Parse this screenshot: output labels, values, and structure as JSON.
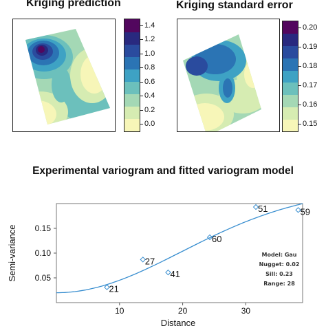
{
  "palette": [
    "#f7f6b8",
    "#d6ecb2",
    "#a4d8b5",
    "#6cc0bc",
    "#3ea2c4",
    "#2b74b4",
    "#2a4b9e",
    "#29297f",
    "#52075e"
  ],
  "prediction_map": {
    "title": "Kriging prediction",
    "colorbar_ticks": [
      "1.4",
      "1.2",
      "1.0",
      "0.8",
      "0.6",
      "0.4",
      "0.2",
      "0.0"
    ]
  },
  "stderr_map": {
    "title": "Kriging standard error",
    "colorbar_ticks": [
      "0.20",
      "0.19",
      "0.18",
      "0.17",
      "0.16",
      "0.15"
    ]
  },
  "chart_data": {
    "type": "scatter",
    "title": "Experimental variogram and fitted variogram model",
    "xlabel": "Distance",
    "ylabel": "Semi-variance",
    "xlim": [
      0,
      39
    ],
    "ylim": [
      0,
      0.2
    ],
    "x_ticks": [
      10,
      20,
      30
    ],
    "y_ticks": [
      "0.05",
      "0.10",
      "0.15"
    ],
    "points": [
      {
        "x": 8.0,
        "y": 0.031,
        "label": "21"
      },
      {
        "x": 13.7,
        "y": 0.087,
        "label": "27"
      },
      {
        "x": 17.7,
        "y": 0.061,
        "label": "41"
      },
      {
        "x": 24.3,
        "y": 0.132,
        "label": "60"
      },
      {
        "x": 31.6,
        "y": 0.193,
        "label": "51"
      },
      {
        "x": 38.3,
        "y": 0.187,
        "label": "59"
      }
    ],
    "model": {
      "type": "Gau",
      "nugget": 0.02,
      "sill": 0.23,
      "range": 28
    },
    "annotations": [
      "Model: Gau",
      "Nugget: 0.02",
      "Sill: 0.23",
      "Range: 28"
    ]
  }
}
